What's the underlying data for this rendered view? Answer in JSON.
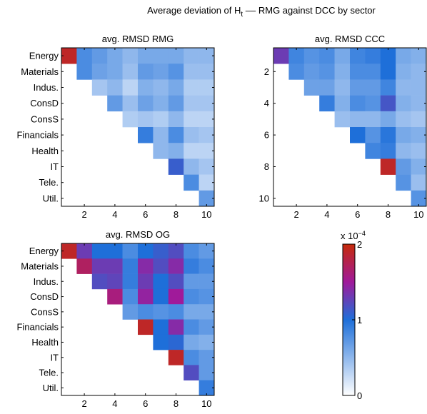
{
  "figure": {
    "title_prefix": "Average deviation of H",
    "title_sub": "t",
    "title_suffix": " –– RMG against DCC by sector"
  },
  "sectors": [
    "Energy",
    "Materials",
    "Indus.",
    "ConsD",
    "ConsS",
    "Financials",
    "Health",
    "IT",
    "Tele.",
    "Util."
  ],
  "colors": {
    "low": "#ffffff",
    "mid": "#1e6fd9",
    "purple": "#a01a9a",
    "high": "#c62a0a"
  },
  "colorbar": {
    "exponent_base": "x 10",
    "exponent_power": "−4",
    "ticks": [
      "0",
      "1",
      "2"
    ]
  },
  "chart_data": [
    {
      "type": "heatmap",
      "title": "avg. RMSD RMG",
      "ytick_mode": "names",
      "xticks": [
        "2",
        "4",
        "6",
        "8",
        "10"
      ],
      "vmin": 0,
      "vmax": 2,
      "scale": "1e-4",
      "matrix": [
        [
          1.9,
          0.8,
          0.7,
          0.6,
          0.5,
          0.6,
          0.6,
          0.6,
          0.5,
          0.5
        ],
        [
          null,
          0.8,
          0.65,
          0.6,
          0.45,
          0.7,
          0.65,
          0.75,
          0.45,
          0.45
        ],
        [
          null,
          null,
          0.4,
          0.5,
          0.3,
          0.55,
          0.5,
          0.6,
          0.35,
          0.35
        ],
        [
          null,
          null,
          null,
          0.7,
          0.45,
          0.65,
          0.55,
          0.7,
          0.4,
          0.4
        ],
        [
          null,
          null,
          null,
          null,
          0.35,
          0.4,
          0.35,
          0.5,
          0.3,
          0.3
        ],
        [
          null,
          null,
          null,
          null,
          null,
          0.9,
          0.5,
          0.8,
          0.45,
          0.4
        ],
        [
          null,
          null,
          null,
          null,
          null,
          null,
          0.5,
          0.55,
          0.3,
          0.3
        ],
        [
          null,
          null,
          null,
          null,
          null,
          null,
          null,
          1.1,
          0.5,
          0.4
        ],
        [
          null,
          null,
          null,
          null,
          null,
          null,
          null,
          null,
          0.8,
          0.3
        ],
        [
          null,
          null,
          null,
          null,
          null,
          null,
          null,
          null,
          null,
          0.7
        ]
      ]
    },
    {
      "type": "heatmap",
      "title": "avg. RMSD CCC",
      "ytick_mode": "numbers",
      "yticks": [
        "2",
        "4",
        "6",
        "8",
        "10"
      ],
      "xticks": [
        "2",
        "4",
        "6",
        "8",
        "10"
      ],
      "vmin": 0,
      "vmax": 2,
      "scale": "1e-4",
      "matrix": [
        [
          1.3,
          0.85,
          0.75,
          0.8,
          0.6,
          0.85,
          0.9,
          1.0,
          0.6,
          0.55
        ],
        [
          null,
          0.8,
          0.7,
          0.75,
          0.55,
          0.8,
          0.8,
          1.0,
          0.55,
          0.5
        ],
        [
          null,
          null,
          0.65,
          0.65,
          0.5,
          0.7,
          0.7,
          0.85,
          0.5,
          0.5
        ],
        [
          null,
          null,
          null,
          0.9,
          0.55,
          0.8,
          0.75,
          1.15,
          0.55,
          0.5
        ],
        [
          null,
          null,
          null,
          null,
          0.45,
          0.5,
          0.5,
          0.6,
          0.45,
          0.4
        ],
        [
          null,
          null,
          null,
          null,
          null,
          1.0,
          0.75,
          0.95,
          0.6,
          0.55
        ],
        [
          null,
          null,
          null,
          null,
          null,
          null,
          0.85,
          0.9,
          0.5,
          0.45
        ],
        [
          null,
          null,
          null,
          null,
          null,
          null,
          null,
          1.9,
          0.7,
          0.55
        ],
        [
          null,
          null,
          null,
          null,
          null,
          null,
          null,
          null,
          0.75,
          0.45
        ],
        [
          null,
          null,
          null,
          null,
          null,
          null,
          null,
          null,
          null,
          0.75
        ]
      ]
    },
    {
      "type": "heatmap",
      "title": "avg. RMSD OG",
      "ytick_mode": "names",
      "xticks": [
        "2",
        "4",
        "6",
        "8",
        "10"
      ],
      "vmin": 0,
      "vmax": 2,
      "scale": "1e-4",
      "matrix": [
        [
          1.9,
          1.3,
          1.0,
          1.0,
          0.8,
          1.0,
          1.1,
          1.2,
          0.8,
          0.7
        ],
        [
          null,
          1.7,
          1.3,
          1.3,
          0.9,
          1.4,
          1.2,
          1.4,
          0.9,
          0.8
        ],
        [
          null,
          null,
          1.2,
          1.25,
          0.9,
          1.3,
          1.0,
          1.2,
          0.7,
          0.7
        ],
        [
          null,
          null,
          null,
          1.6,
          0.8,
          1.45,
          1.0,
          1.5,
          0.8,
          0.75
        ],
        [
          null,
          null,
          null,
          null,
          0.7,
          0.8,
          0.75,
          0.8,
          0.6,
          0.6
        ],
        [
          null,
          null,
          null,
          null,
          null,
          1.9,
          1.0,
          1.4,
          0.8,
          0.7
        ],
        [
          null,
          null,
          null,
          null,
          null,
          null,
          1.0,
          1.05,
          0.6,
          0.55
        ],
        [
          null,
          null,
          null,
          null,
          null,
          null,
          null,
          1.9,
          0.8,
          0.7
        ],
        [
          null,
          null,
          null,
          null,
          null,
          null,
          null,
          null,
          1.2,
          0.7
        ],
        [
          null,
          null,
          null,
          null,
          null,
          null,
          null,
          null,
          null,
          0.9
        ]
      ]
    }
  ]
}
